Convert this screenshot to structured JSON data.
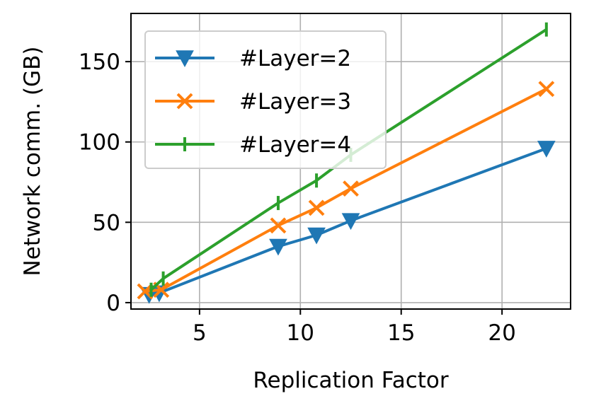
{
  "chart_data": {
    "type": "line",
    "title": "",
    "xlabel": "Replication Factor",
    "ylabel": "Network comm. (GB)",
    "xlim": [
      1.6,
      23.4
    ],
    "ylim": [
      -4,
      180
    ],
    "xticks": [
      5,
      10,
      15,
      20
    ],
    "yticks": [
      0,
      50,
      100,
      150
    ],
    "grid": true,
    "legend": "top-left",
    "series": [
      {
        "name": "#Layer=2",
        "color": "#1f77b4",
        "marker": "triangle-down",
        "x": [
          2.5,
          3.0,
          8.9,
          10.8,
          12.5,
          22.2
        ],
        "y": [
          5,
          6,
          35,
          42,
          51,
          96
        ]
      },
      {
        "name": "#Layer=3",
        "color": "#ff7f0e",
        "marker": "x",
        "x": [
          2.3,
          3.1,
          8.9,
          10.8,
          12.5,
          22.2
        ],
        "y": [
          7,
          8,
          48,
          59,
          71,
          133
        ]
      },
      {
        "name": "#Layer=4",
        "color": "#2ca02c",
        "marker": "vline",
        "x": [
          2.6,
          3.2,
          8.9,
          10.8,
          12.5,
          22.2
        ],
        "y": [
          8,
          15,
          62,
          76,
          92,
          170
        ]
      }
    ]
  }
}
